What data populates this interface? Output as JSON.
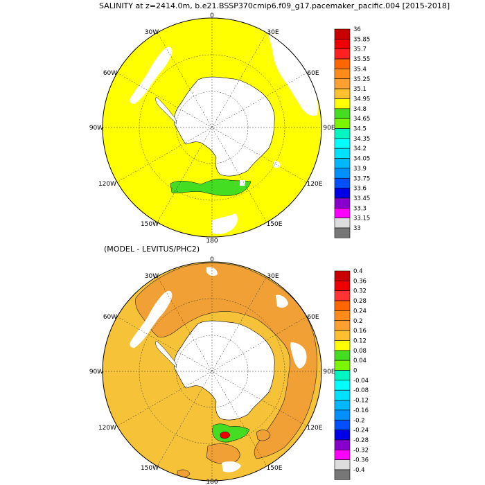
{
  "title": "SALINITY at z=2414.0m, b.e21.BSSP370cmip6.f09_g17.pacemaker_pacific.004 [2015-2018]",
  "subtitle": "(MODEL - LEVITUS/PHC2)",
  "map_labels": {
    "lon_0": "0",
    "lon_30E": "30E",
    "lon_60E": "60E",
    "lon_90E": "90E",
    "lon_120E": "120E",
    "lon_150E": "150E",
    "lon_180": "180",
    "lon_150W": "150W",
    "lon_120W": "120W",
    "lon_90W": "90W",
    "lon_60W": "60W",
    "lon_30W": "30W"
  },
  "colors": {
    "land": "#ffffff",
    "coast": "#000000",
    "top_ocean": "#ffff00",
    "top_green": "#44dd22",
    "bot_base": "#f5c238",
    "bot_orange": "#f0a035",
    "bot_green": "#44dd22"
  },
  "colorbar_top": {
    "labels": [
      "36",
      "35.85",
      "35.7",
      "35.55",
      "35.4",
      "35.25",
      "35.1",
      "34.95",
      "34.8",
      "34.65",
      "34.5",
      "34.35",
      "34.2",
      "34.05",
      "33.9",
      "33.75",
      "33.6",
      "33.45",
      "33.3",
      "33.15",
      "33"
    ],
    "colors": [
      "#c80000",
      "#ee0000",
      "#ff2020",
      "#ff6600",
      "#ff8c1a",
      "#ffa030",
      "#ffc030",
      "#ffff00",
      "#44dd22",
      "#7cf500",
      "#00f5c0",
      "#00ffff",
      "#00e0ff",
      "#00b8ff",
      "#0090ff",
      "#0050ff",
      "#0000e6",
      "#8800cc",
      "#ff00ff",
      "#dddddd",
      "#777777"
    ]
  },
  "colorbar_bottom": {
    "labels": [
      "0.4",
      "0.36",
      "0.32",
      "0.28",
      "0.24",
      "0.2",
      "0.16",
      "0.12",
      "0.08",
      "0.04",
      "0",
      "-0.04",
      "-0.08",
      "-0.12",
      "-0.16",
      "-0.2",
      "-0.24",
      "-0.28",
      "-0.32",
      "-0.36",
      "-0.4"
    ],
    "colors": [
      "#c80000",
      "#ee0000",
      "#ff3333",
      "#ff6600",
      "#ff8c1a",
      "#ffa030",
      "#ffc030",
      "#ffff00",
      "#44dd22",
      "#7cf500",
      "#00f5c0",
      "#00ffff",
      "#00e0ff",
      "#00b8ff",
      "#0090ff",
      "#0050ff",
      "#0000e6",
      "#8800cc",
      "#ff00ff",
      "#dddddd",
      "#777777"
    ]
  }
}
